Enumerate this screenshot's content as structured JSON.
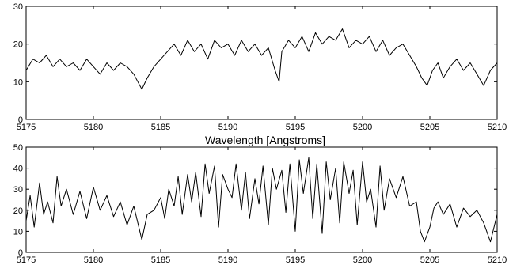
{
  "chart_data": [
    {
      "type": "line",
      "title": "",
      "xlabel": "",
      "ylabel": "",
      "xlim": [
        5175,
        5210
      ],
      "ylim": [
        0,
        30
      ],
      "xticks": [
        5175,
        5180,
        5185,
        5190,
        5195,
        5200,
        5205,
        5210
      ],
      "yticks": [
        0,
        10,
        20,
        30
      ],
      "grid": false,
      "series": [
        {
          "x": [
            5175.0,
            5175.5,
            5176.0,
            5176.5,
            5177.0,
            5177.5,
            5178.0,
            5178.5,
            5179.0,
            5179.5,
            5180.0,
            5180.5,
            5181.0,
            5181.5,
            5182.0,
            5182.5,
            5183.0,
            5183.3,
            5183.6,
            5184.0,
            5184.5,
            5185.0,
            5185.5,
            5186.0,
            5186.5,
            5187.0,
            5187.5,
            5188.0,
            5188.5,
            5189.0,
            5189.5,
            5190.0,
            5190.5,
            5191.0,
            5191.5,
            5192.0,
            5192.5,
            5193.0,
            5193.5,
            5193.8,
            5194.0,
            5194.5,
            5195.0,
            5195.5,
            5196.0,
            5196.5,
            5197.0,
            5197.5,
            5198.0,
            5198.5,
            5199.0,
            5199.5,
            5200.0,
            5200.5,
            5201.0,
            5201.5,
            5202.0,
            5202.5,
            5203.0,
            5203.5,
            5204.0,
            5204.4,
            5204.8,
            5205.2,
            5205.6,
            5206.0,
            5206.5,
            5207.0,
            5207.5,
            5208.0,
            5208.5,
            5209.0,
            5209.5,
            5210.0
          ],
          "y": [
            13,
            16,
            15,
            17,
            14,
            16,
            14,
            15,
            13,
            16,
            14,
            12,
            15,
            13,
            15,
            14,
            12,
            10,
            8,
            11,
            14,
            16,
            18,
            20,
            17,
            21,
            18,
            20,
            16,
            21,
            19,
            20,
            17,
            21,
            18,
            20,
            17,
            19,
            13,
            10,
            18,
            21,
            19,
            22,
            18,
            23,
            20,
            22,
            21,
            24,
            19,
            21,
            20,
            22,
            18,
            21,
            17,
            19,
            20,
            17,
            14,
            11,
            9,
            13,
            15,
            11,
            14,
            16,
            13,
            15,
            12,
            9,
            13,
            15
          ]
        }
      ]
    },
    {
      "type": "line",
      "title": "",
      "xlabel": "Wavelength [Angstroms]",
      "ylabel": "",
      "xlim": [
        5175,
        5210
      ],
      "ylim": [
        0,
        50
      ],
      "xticks": [
        5175,
        5180,
        5185,
        5190,
        5195,
        5200,
        5205,
        5210
      ],
      "yticks": [
        0,
        10,
        20,
        30,
        40,
        50
      ],
      "grid": false,
      "series": [
        {
          "x": [
            5175.0,
            5175.3,
            5175.6,
            5176.0,
            5176.3,
            5176.6,
            5177.0,
            5177.3,
            5177.6,
            5178.0,
            5178.5,
            5179.0,
            5179.5,
            5180.0,
            5180.5,
            5181.0,
            5181.5,
            5182.0,
            5182.5,
            5183.0,
            5183.3,
            5183.6,
            5184.0,
            5184.5,
            5185.0,
            5185.3,
            5185.6,
            5186.0,
            5186.3,
            5186.6,
            5187.0,
            5187.3,
            5187.6,
            5188.0,
            5188.3,
            5188.6,
            5189.0,
            5189.3,
            5189.6,
            5190.0,
            5190.3,
            5190.6,
            5191.0,
            5191.3,
            5191.6,
            5192.0,
            5192.3,
            5192.6,
            5193.0,
            5193.3,
            5193.6,
            5194.0,
            5194.3,
            5194.6,
            5195.0,
            5195.3,
            5195.6,
            5196.0,
            5196.3,
            5196.6,
            5197.0,
            5197.3,
            5197.6,
            5198.0,
            5198.3,
            5198.6,
            5199.0,
            5199.3,
            5199.6,
            5200.0,
            5200.3,
            5200.6,
            5201.0,
            5201.3,
            5201.6,
            5202.0,
            5202.5,
            5203.0,
            5203.5,
            5204.0,
            5204.3,
            5204.6,
            5205.0,
            5205.3,
            5205.6,
            5206.0,
            5206.5,
            5207.0,
            5207.5,
            5208.0,
            5208.5,
            5209.0,
            5209.5,
            5210.0
          ],
          "y": [
            15,
            27,
            12,
            33,
            18,
            24,
            14,
            36,
            22,
            30,
            18,
            29,
            16,
            31,
            20,
            27,
            17,
            24,
            13,
            22,
            14,
            6,
            18,
            20,
            26,
            16,
            30,
            22,
            36,
            18,
            37,
            24,
            38,
            17,
            42,
            28,
            41,
            12,
            37,
            30,
            26,
            42,
            20,
            38,
            16,
            35,
            23,
            41,
            13,
            40,
            30,
            39,
            19,
            42,
            10,
            44,
            28,
            45,
            16,
            42,
            9,
            43,
            25,
            40,
            14,
            43,
            28,
            39,
            13,
            43,
            24,
            30,
            12,
            41,
            20,
            35,
            26,
            36,
            22,
            24,
            10,
            5,
            12,
            21,
            24,
            18,
            23,
            12,
            21,
            17,
            20,
            14,
            5,
            18
          ]
        }
      ]
    }
  ]
}
